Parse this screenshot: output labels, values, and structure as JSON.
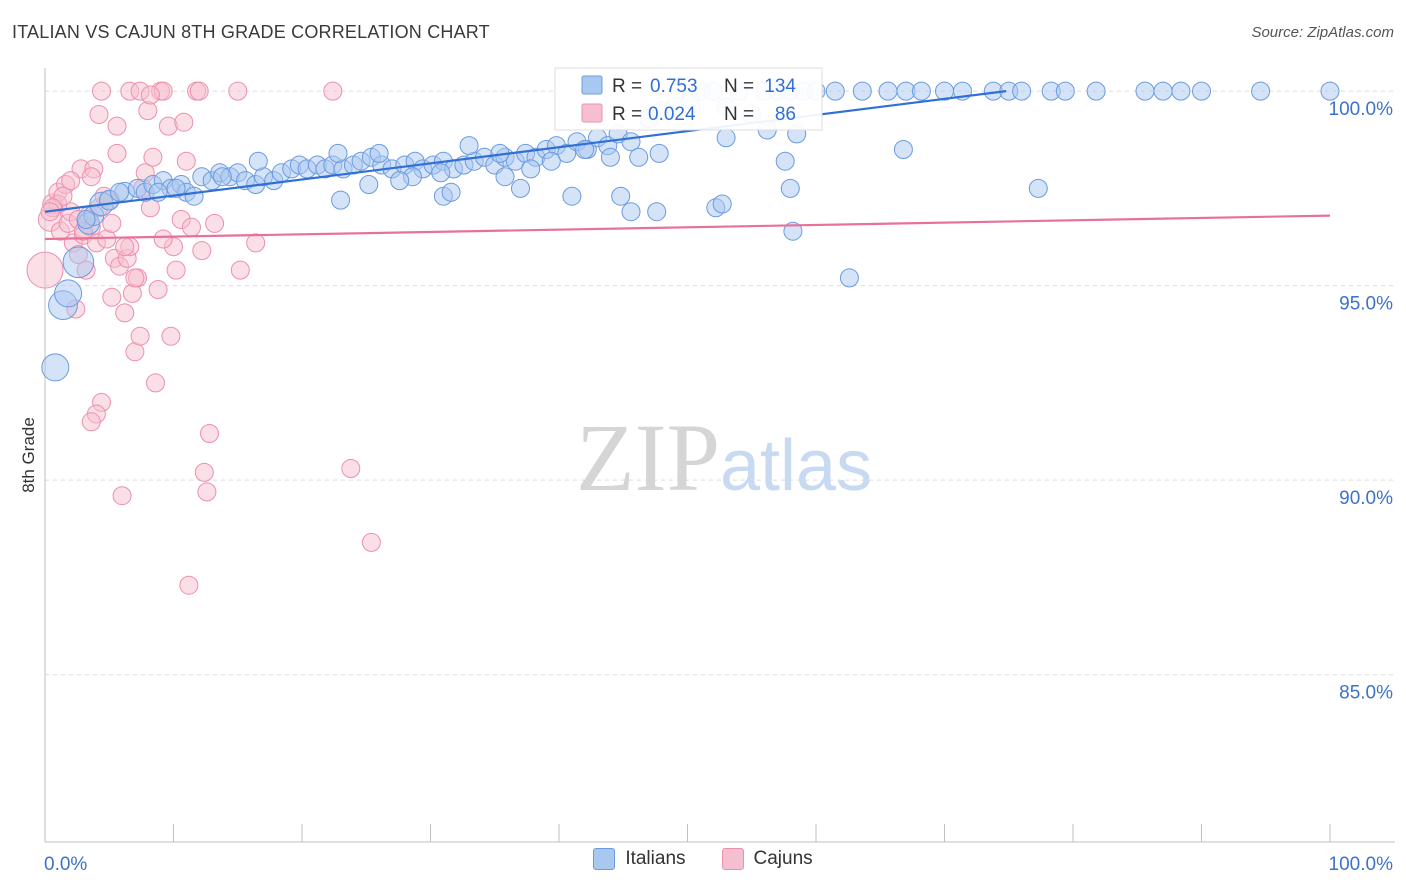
{
  "header": {
    "title": "ITALIAN VS CAJUN 8TH GRADE CORRELATION CHART",
    "source": "Source: ZipAtlas.com"
  },
  "watermark": {
    "zip": "ZIP",
    "atlas": "atlas"
  },
  "colors": {
    "blue_fill": "#a9c8f0",
    "blue_stroke": "#6a9be0",
    "blue_line": "#2f6fd6",
    "pink_fill": "#f6bfd0",
    "pink_stroke": "#ee8fae",
    "pink_line": "#e8719a",
    "tick_label": "#3d72c9",
    "grid": "#dcdcdc"
  },
  "stats_legend": {
    "r_label": "R =",
    "n_label": "N =",
    "italians": {
      "r": "0.753",
      "n": "134"
    },
    "cajuns": {
      "r": "0.024",
      "n": "86"
    }
  },
  "chart_data": {
    "type": "scatter",
    "title": "ITALIAN VS CAJUN 8TH GRADE CORRELATION CHART",
    "xlabel": "",
    "ylabel": "8th Grade",
    "xlim": [
      0,
      100
    ],
    "ylim": [
      80.7,
      100.8
    ],
    "x_tick_labels": {
      "left": "0.0%",
      "right": "100.0%"
    },
    "y_ticks": [
      {
        "value": 100,
        "label": "100.0%"
      },
      {
        "value": 95,
        "label": "95.0%"
      },
      {
        "value": 90,
        "label": "90.0%"
      },
      {
        "value": 85,
        "label": "85.0%"
      }
    ],
    "grid": true,
    "legend_position": "bottom",
    "series": [
      {
        "name": "Italians",
        "trend": {
          "x": [
            0,
            74.8
          ],
          "y": [
            96.9,
            100.0
          ]
        },
        "points": [
          [
            0.8,
            92.9,
            1.5
          ],
          [
            1.4,
            94.5,
            1.6
          ],
          [
            1.8,
            94.8,
            1.5
          ],
          [
            2.6,
            95.6,
            1.7
          ],
          [
            3.4,
            96.6,
            1.2
          ],
          [
            3.8,
            96.8,
            1.1
          ],
          [
            4.4,
            97.1,
            1.3
          ],
          [
            5.0,
            97.2,
            1.1
          ],
          [
            6.2,
            97.4,
            1.1
          ],
          [
            7.2,
            97.5,
            1.0
          ],
          [
            7.8,
            97.4,
            1.0
          ],
          [
            8.4,
            97.6,
            1.0
          ],
          [
            9.2,
            97.7,
            1.0
          ],
          [
            9.8,
            97.5,
            1.0
          ],
          [
            10.6,
            97.6,
            1.0
          ],
          [
            11.0,
            97.4,
            1.0
          ],
          [
            11.6,
            97.3,
            1.0
          ],
          [
            12.2,
            97.8,
            1.0
          ],
          [
            13.0,
            97.7,
            1.0
          ],
          [
            13.6,
            97.9,
            1.0
          ],
          [
            14.4,
            97.8,
            1.0
          ],
          [
            15.0,
            97.9,
            1.0
          ],
          [
            15.6,
            97.7,
            1.0
          ],
          [
            16.4,
            97.6,
            1.0
          ],
          [
            17.0,
            97.8,
            1.0
          ],
          [
            17.8,
            97.7,
            1.0
          ],
          [
            18.4,
            97.9,
            1.0
          ],
          [
            19.2,
            98.0,
            1.0
          ],
          [
            19.8,
            98.1,
            1.0
          ],
          [
            20.4,
            98.0,
            1.0
          ],
          [
            21.2,
            98.1,
            1.0
          ],
          [
            21.8,
            98.0,
            1.0
          ],
          [
            22.4,
            98.1,
            1.0
          ],
          [
            23.2,
            98.0,
            1.0
          ],
          [
            24.0,
            98.1,
            1.0
          ],
          [
            24.6,
            98.2,
            1.0
          ],
          [
            25.4,
            98.3,
            1.0
          ],
          [
            26.2,
            98.1,
            1.0
          ],
          [
            27.0,
            98.0,
            1.0
          ],
          [
            28.0,
            98.1,
            1.0
          ],
          [
            28.8,
            98.2,
            1.0
          ],
          [
            29.4,
            98.0,
            1.0
          ],
          [
            30.2,
            98.1,
            1.0
          ],
          [
            31.0,
            98.2,
            1.0
          ],
          [
            31.8,
            98.0,
            1.0
          ],
          [
            32.6,
            98.1,
            1.0
          ],
          [
            33.4,
            98.2,
            1.0
          ],
          [
            34.2,
            98.3,
            1.0
          ],
          [
            35.0,
            98.1,
            1.0
          ],
          [
            35.8,
            98.3,
            1.0
          ],
          [
            36.6,
            98.2,
            1.0
          ],
          [
            37.4,
            98.4,
            1.0
          ],
          [
            38.2,
            98.3,
            1.0
          ],
          [
            39.0,
            98.5,
            1.0
          ],
          [
            39.8,
            98.6,
            1.0
          ],
          [
            40.6,
            98.4,
            1.0
          ],
          [
            41.4,
            98.7,
            1.0
          ],
          [
            42.2,
            98.5,
            1.0
          ],
          [
            43.0,
            98.8,
            1.0
          ],
          [
            43.8,
            98.6,
            1.0
          ],
          [
            44.6,
            98.9,
            1.0
          ],
          [
            45.6,
            98.7,
            1.0
          ],
          [
            47.0,
            99.3,
            1.0
          ],
          [
            48.0,
            99.5,
            1.0
          ],
          [
            49.0,
            99.6,
            1.0
          ],
          [
            50.2,
            99.8,
            1.0
          ],
          [
            51.0,
            100.0,
            1.0
          ],
          [
            52.0,
            100.0,
            1.0
          ],
          [
            53.0,
            99.6,
            1.0
          ],
          [
            54.0,
            100.0,
            1.0
          ],
          [
            55.0,
            99.4,
            1.0
          ],
          [
            56.0,
            100.0,
            1.0
          ],
          [
            57.0,
            100.0,
            1.0
          ],
          [
            58.0,
            100.0,
            1.0
          ],
          [
            59.0,
            100.0,
            1.0
          ],
          [
            60.0,
            100.0,
            1.0
          ],
          [
            61.5,
            100.0,
            1.0
          ],
          [
            63.6,
            100.0,
            1.0
          ],
          [
            65.6,
            100.0,
            1.0
          ],
          [
            67.0,
            100.0,
            1.0
          ],
          [
            68.2,
            100.0,
            1.0
          ],
          [
            70.0,
            100.0,
            1.0
          ],
          [
            71.4,
            100.0,
            1.0
          ],
          [
            73.8,
            100.0,
            1.0
          ],
          [
            75.0,
            100.0,
            1.0
          ],
          [
            76.0,
            100.0,
            1.0
          ],
          [
            78.3,
            100.0,
            1.0
          ],
          [
            79.4,
            100.0,
            1.0
          ],
          [
            81.8,
            100.0,
            1.0
          ],
          [
            85.6,
            100.0,
            1.0
          ],
          [
            87.0,
            100.0,
            1.0
          ],
          [
            88.4,
            100.0,
            1.0
          ],
          [
            90.0,
            100.0,
            1.0
          ],
          [
            94.6,
            100.0,
            1.0
          ],
          [
            100.0,
            100.0,
            1.0
          ],
          [
            5.8,
            97.4,
            1.0
          ],
          [
            8.8,
            97.4,
            1.0
          ],
          [
            10.2,
            97.5,
            1.0
          ],
          [
            13.8,
            97.8,
            1.0
          ],
          [
            16.6,
            98.2,
            1.0
          ],
          [
            22.8,
            98.4,
            1.0
          ],
          [
            26.0,
            98.4,
            1.0
          ],
          [
            28.6,
            97.8,
            1.0
          ],
          [
            30.8,
            97.9,
            1.0
          ],
          [
            33.0,
            98.6,
            1.0
          ],
          [
            35.4,
            98.4,
            1.0
          ],
          [
            37.8,
            98.0,
            1.0
          ],
          [
            39.4,
            98.2,
            1.0
          ],
          [
            42.0,
            98.5,
            1.0
          ],
          [
            44.0,
            98.3,
            1.0
          ],
          [
            46.2,
            98.3,
            1.0
          ],
          [
            47.8,
            98.4,
            1.0
          ],
          [
            53.0,
            98.8,
            1.0
          ],
          [
            56.2,
            99.0,
            1.0
          ],
          [
            58.5,
            98.9,
            1.0
          ],
          [
            66.8,
            98.5,
            1.0
          ],
          [
            57.6,
            98.2,
            1.0
          ],
          [
            23.0,
            97.2,
            1.0
          ],
          [
            25.2,
            97.6,
            1.0
          ],
          [
            27.6,
            97.7,
            1.0
          ],
          [
            31.0,
            97.3,
            1.0
          ],
          [
            31.6,
            97.4,
            1.0
          ],
          [
            35.8,
            97.8,
            1.0
          ],
          [
            37.0,
            97.5,
            1.0
          ],
          [
            41.0,
            97.3,
            1.0
          ],
          [
            44.8,
            97.3,
            1.0
          ],
          [
            47.6,
            96.9,
            1.0
          ],
          [
            52.2,
            97.0,
            1.0
          ],
          [
            58.2,
            96.4,
            1.0
          ],
          [
            62.6,
            95.2,
            1.0
          ],
          [
            77.3,
            97.5,
            1.0
          ],
          [
            58.0,
            97.5,
            1.0
          ],
          [
            45.6,
            96.9,
            1.0
          ],
          [
            52.7,
            97.1,
            1.0
          ],
          [
            3.2,
            96.7,
            1.0
          ]
        ]
      },
      {
        "name": "Cajuns",
        "trend": {
          "x": [
            0,
            100
          ],
          "y": [
            96.2,
            96.8
          ]
        },
        "points": [
          [
            0.0,
            95.4,
            2.0
          ],
          [
            0.4,
            96.7,
            1.3
          ],
          [
            0.6,
            97.1,
            1.1
          ],
          [
            1.0,
            97.4,
            1.0
          ],
          [
            1.2,
            96.4,
            1.0
          ],
          [
            1.6,
            97.6,
            1.0
          ],
          [
            1.8,
            96.6,
            1.0
          ],
          [
            2.0,
            96.9,
            1.0
          ],
          [
            2.2,
            96.1,
            1.0
          ],
          [
            2.4,
            94.4,
            1.0
          ],
          [
            2.6,
            95.8,
            1.0
          ],
          [
            2.8,
            98.0,
            1.0
          ],
          [
            3.0,
            96.3,
            1.0
          ],
          [
            3.2,
            95.4,
            1.0
          ],
          [
            3.4,
            96.8,
            1.0
          ],
          [
            3.6,
            96.5,
            1.0
          ],
          [
            3.8,
            98.0,
            1.0
          ],
          [
            4.0,
            96.1,
            1.0
          ],
          [
            4.2,
            97.0,
            1.0
          ],
          [
            4.4,
            92.0,
            1.0
          ],
          [
            4.6,
            97.3,
            1.0
          ],
          [
            4.8,
            96.2,
            1.0
          ],
          [
            5.0,
            97.2,
            1.0
          ],
          [
            5.2,
            96.6,
            1.0
          ],
          [
            5.4,
            95.7,
            1.0
          ],
          [
            5.6,
            98.4,
            1.0
          ],
          [
            5.8,
            95.5,
            1.0
          ],
          [
            6.0,
            89.6,
            1.0
          ],
          [
            6.2,
            94.3,
            1.0
          ],
          [
            6.4,
            95.7,
            1.0
          ],
          [
            6.6,
            96.0,
            1.0
          ],
          [
            6.8,
            94.8,
            1.0
          ],
          [
            7.0,
            93.3,
            1.0
          ],
          [
            7.2,
            95.2,
            1.0
          ],
          [
            7.4,
            93.7,
            1.0
          ],
          [
            7.6,
            97.5,
            1.0
          ],
          [
            7.8,
            97.9,
            1.0
          ],
          [
            8.0,
            99.5,
            1.0
          ],
          [
            8.2,
            97.0,
            1.0
          ],
          [
            8.4,
            98.3,
            1.0
          ],
          [
            8.6,
            92.5,
            1.0
          ],
          [
            8.8,
            94.9,
            1.0
          ],
          [
            9.0,
            100.0,
            1.0
          ],
          [
            9.2,
            100.0,
            1.0
          ],
          [
            9.6,
            99.1,
            1.0
          ],
          [
            9.8,
            93.7,
            1.0
          ],
          [
            10.0,
            96.0,
            1.0
          ],
          [
            10.2,
            95.4,
            1.0
          ],
          [
            10.6,
            96.7,
            1.0
          ],
          [
            10.8,
            99.2,
            1.0
          ],
          [
            11.0,
            98.2,
            1.0
          ],
          [
            11.2,
            87.3,
            1.0
          ],
          [
            11.4,
            96.5,
            1.0
          ],
          [
            11.8,
            100.0,
            1.0
          ],
          [
            12.0,
            100.0,
            1.0
          ],
          [
            12.2,
            95.9,
            1.0
          ],
          [
            12.4,
            90.2,
            1.0
          ],
          [
            12.6,
            89.7,
            1.0
          ],
          [
            12.8,
            91.2,
            1.0
          ],
          [
            13.2,
            96.6,
            1.0
          ],
          [
            4.2,
            99.4,
            1.0
          ],
          [
            5.6,
            99.1,
            1.0
          ],
          [
            6.6,
            100.0,
            1.0
          ],
          [
            4.4,
            100.0,
            1.0
          ],
          [
            3.6,
            97.8,
            1.0
          ],
          [
            1.0,
            97.1,
            1.0
          ],
          [
            2.0,
            97.7,
            1.0
          ],
          [
            15.0,
            100.0,
            1.0
          ],
          [
            15.2,
            95.4,
            1.0
          ],
          [
            16.4,
            96.1,
            1.0
          ],
          [
            22.4,
            100.0,
            1.0
          ],
          [
            23.8,
            90.3,
            1.0
          ],
          [
            25.4,
            88.4,
            1.0
          ],
          [
            7.4,
            100.0,
            1.0
          ],
          [
            8.2,
            99.9,
            1.0
          ],
          [
            2.6,
            96.7,
            1.0
          ],
          [
            3.0,
            96.4,
            1.0
          ],
          [
            4.0,
            91.7,
            1.0
          ],
          [
            3.6,
            91.5,
            1.0
          ],
          [
            6.2,
            96.0,
            1.0
          ],
          [
            9.2,
            96.2,
            1.0
          ],
          [
            1.4,
            97.3,
            1.0
          ],
          [
            0.6,
            97.0,
            1.0
          ],
          [
            0.4,
            96.9,
            1.0
          ],
          [
            5.2,
            94.7,
            1.0
          ],
          [
            7.0,
            95.2,
            1.0
          ]
        ]
      }
    ]
  }
}
